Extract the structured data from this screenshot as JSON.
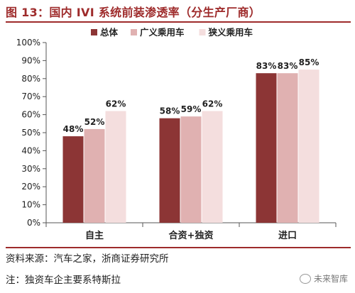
{
  "header": {
    "title": "图 13：国内 IVI 系统前装渗透率（分生产厂商）"
  },
  "chart_data": {
    "type": "bar",
    "categories": [
      "自主",
      "合资+独资",
      "进口"
    ],
    "series": [
      {
        "name": "总体",
        "values": [
          48,
          58,
          83
        ],
        "labels": [
          "48%",
          "58%",
          "83%"
        ],
        "color": "#8c3535"
      },
      {
        "name": "广义乘用车",
        "values": [
          52,
          59,
          83
        ],
        "labels": [
          "52%",
          "59%",
          "83%"
        ],
        "color": "#e0b1b1"
      },
      {
        "name": "狭义乘用车",
        "values": [
          62,
          62,
          85
        ],
        "labels": [
          "62%",
          "62%",
          "85%"
        ],
        "color": "#f4dede"
      }
    ],
    "yticks": [
      "0%",
      "10%",
      "20%",
      "30%",
      "40%",
      "50%",
      "60%",
      "70%",
      "80%",
      "90%",
      "100%"
    ],
    "ylim": [
      0,
      100
    ],
    "legend_position": "top-center",
    "grid": false
  },
  "footer": {
    "source": "资料来源：汽车之家，浙商证券研究所",
    "note": "注：独资车企主要系特斯拉",
    "watermark": "未来智库"
  }
}
